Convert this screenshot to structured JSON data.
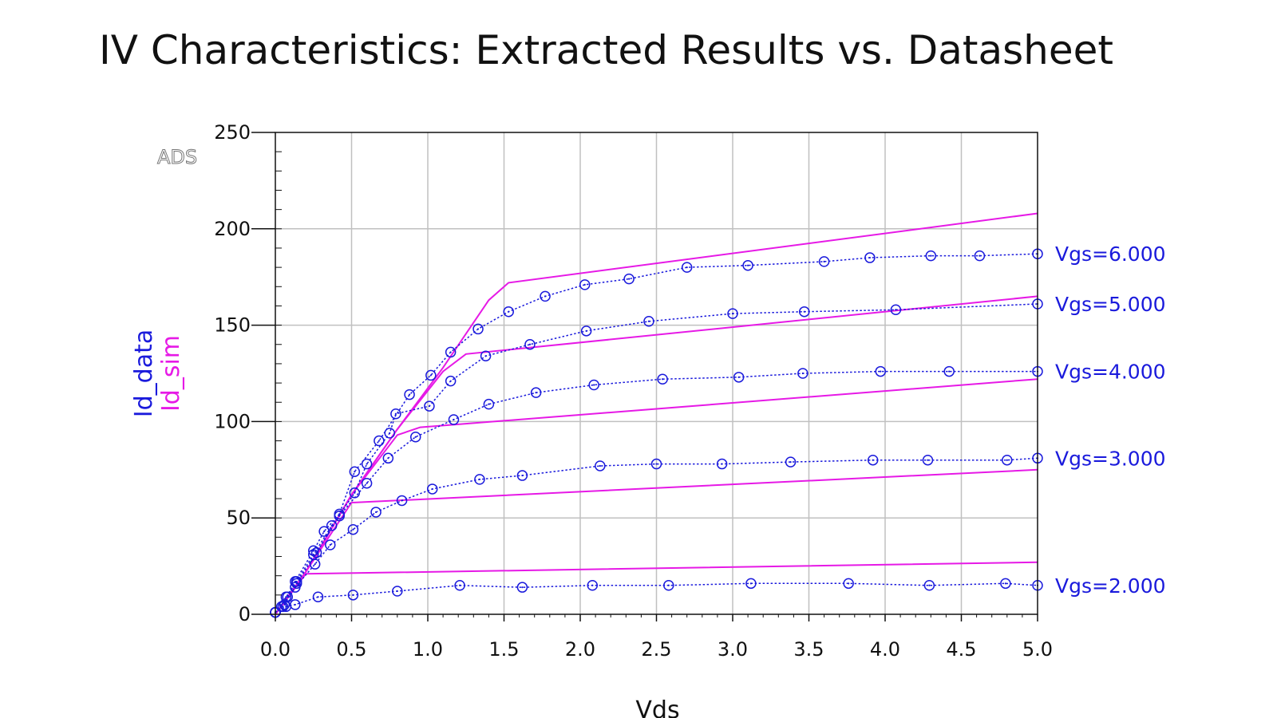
{
  "chart_data": {
    "type": "line",
    "title": "IV Characteristics: Extracted Results vs. Datasheet",
    "xlabel": "Vds",
    "ylabel": [
      "Id_data",
      "Id_sim"
    ],
    "watermark": "ADS",
    "xlim": [
      0,
      5
    ],
    "ylim": [
      0,
      250
    ],
    "xticks": [
      "0.0",
      "0.5",
      "1.0",
      "1.5",
      "2.0",
      "2.5",
      "3.0",
      "3.5",
      "4.0",
      "4.5",
      "5.0"
    ],
    "yticks": [
      "0",
      "50",
      "100",
      "150",
      "200",
      "250"
    ],
    "grid": true,
    "colors": {
      "data": "#1a1adc",
      "sim": "#e619e6",
      "grid": "#c0c0c0",
      "axis": "#111111"
    },
    "series": [
      {
        "label": "Vgs=6.000",
        "data": [
          [
            0.0,
            1
          ],
          [
            0.04,
            4
          ],
          [
            0.08,
            9
          ],
          [
            0.13,
            17
          ],
          [
            0.25,
            33
          ],
          [
            0.32,
            43
          ],
          [
            0.42,
            52
          ],
          [
            0.52,
            74
          ],
          [
            0.68,
            90
          ],
          [
            0.88,
            114
          ],
          [
            1.02,
            124
          ],
          [
            1.15,
            136
          ],
          [
            1.33,
            148
          ],
          [
            1.53,
            157
          ],
          [
            1.77,
            165
          ],
          [
            2.03,
            171
          ],
          [
            2.32,
            174
          ],
          [
            2.7,
            180
          ],
          [
            3.1,
            181
          ],
          [
            3.6,
            183
          ],
          [
            3.9,
            185
          ],
          [
            4.3,
            186
          ],
          [
            4.62,
            186
          ],
          [
            5.0,
            187
          ]
        ],
        "sim": [
          [
            0.0,
            0
          ],
          [
            0.2,
            22
          ],
          [
            0.5,
            62
          ],
          [
            0.8,
            96
          ],
          [
            1.1,
            128
          ],
          [
            1.4,
            163
          ],
          [
            1.53,
            172
          ],
          [
            5.0,
            208
          ]
        ]
      },
      {
        "label": "Vgs=5.000",
        "data": [
          [
            0.0,
            1
          ],
          [
            0.07,
            9
          ],
          [
            0.14,
            17
          ],
          [
            0.25,
            31
          ],
          [
            0.37,
            46
          ],
          [
            0.52,
            63
          ],
          [
            0.6,
            78
          ],
          [
            0.75,
            94
          ],
          [
            0.79,
            104
          ],
          [
            1.01,
            108
          ],
          [
            1.15,
            121
          ],
          [
            1.38,
            134
          ],
          [
            1.67,
            140
          ],
          [
            2.04,
            147
          ],
          [
            2.45,
            152
          ],
          [
            3.0,
            156
          ],
          [
            3.47,
            157
          ],
          [
            4.07,
            158
          ],
          [
            5.0,
            161
          ]
        ],
        "sim": [
          [
            0.0,
            0
          ],
          [
            0.2,
            22
          ],
          [
            0.5,
            62
          ],
          [
            0.8,
            96
          ],
          [
            1.1,
            126
          ],
          [
            1.25,
            135
          ],
          [
            5.0,
            165
          ]
        ]
      },
      {
        "label": "Vgs=4.000",
        "data": [
          [
            0.0,
            1
          ],
          [
            0.06,
            5
          ],
          [
            0.14,
            16
          ],
          [
            0.27,
            32
          ],
          [
            0.42,
            51
          ],
          [
            0.6,
            68
          ],
          [
            0.74,
            81
          ],
          [
            0.92,
            92
          ],
          [
            1.17,
            101
          ],
          [
            1.4,
            109
          ],
          [
            1.71,
            115
          ],
          [
            2.09,
            119
          ],
          [
            2.54,
            122
          ],
          [
            3.04,
            123
          ],
          [
            3.46,
            125
          ],
          [
            3.97,
            126
          ],
          [
            4.42,
            126
          ],
          [
            5.0,
            126
          ]
        ],
        "sim": [
          [
            0.0,
            0
          ],
          [
            0.2,
            22
          ],
          [
            0.5,
            62
          ],
          [
            0.8,
            93
          ],
          [
            0.95,
            97
          ],
          [
            5.0,
            122
          ]
        ]
      },
      {
        "label": "Vgs=3.000",
        "data": [
          [
            0.0,
            1
          ],
          [
            0.05,
            4
          ],
          [
            0.13,
            14
          ],
          [
            0.26,
            26
          ],
          [
            0.36,
            36
          ],
          [
            0.51,
            44
          ],
          [
            0.66,
            53
          ],
          [
            0.83,
            59
          ],
          [
            1.03,
            65
          ],
          [
            1.34,
            70
          ],
          [
            1.62,
            72
          ],
          [
            2.13,
            77
          ],
          [
            2.5,
            78
          ],
          [
            2.93,
            78
          ],
          [
            3.38,
            79
          ],
          [
            3.92,
            80
          ],
          [
            4.28,
            80
          ],
          [
            4.8,
            80
          ],
          [
            5.0,
            81
          ]
        ],
        "sim": [
          [
            0.0,
            0
          ],
          [
            0.2,
            22
          ],
          [
            0.5,
            58
          ],
          [
            0.52,
            58
          ],
          [
            5.0,
            75
          ]
        ]
      },
      {
        "label": "Vgs=2.000",
        "data": [
          [
            0.0,
            1
          ],
          [
            0.07,
            4
          ],
          [
            0.13,
            5
          ],
          [
            0.28,
            9
          ],
          [
            0.51,
            10
          ],
          [
            0.8,
            12
          ],
          [
            1.21,
            15
          ],
          [
            1.62,
            14
          ],
          [
            2.08,
            15
          ],
          [
            2.58,
            15
          ],
          [
            3.12,
            16
          ],
          [
            3.76,
            16
          ],
          [
            4.29,
            15
          ],
          [
            4.79,
            16
          ],
          [
            5.0,
            15
          ]
        ],
        "sim": [
          [
            0.0,
            0
          ],
          [
            0.2,
            21
          ],
          [
            5.0,
            27
          ]
        ]
      }
    ]
  }
}
